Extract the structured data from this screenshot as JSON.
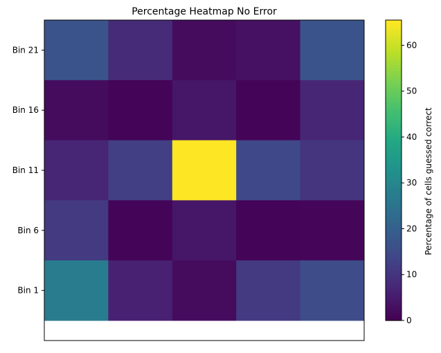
{
  "chart_data": {
    "type": "heatmap",
    "title": "Percentage Heatmap No Error",
    "xlabel": "",
    "ylabel": "",
    "x_tick_labels": [],
    "y_tick_labels": [
      "Bin 21",
      "Bin 16",
      "Bin 11",
      "Bin 6",
      "Bin 1"
    ],
    "rows": [
      "Bin 21",
      "Bin 16",
      "Bin 11",
      "Bin 6",
      "Bin 1"
    ],
    "values": [
      [
        17,
        8,
        2,
        3,
        17
      ],
      [
        2,
        0.5,
        4,
        0.5,
        7
      ],
      [
        7,
        12,
        66,
        14,
        10
      ],
      [
        11,
        0.5,
        4,
        0.5,
        1
      ],
      [
        27,
        6,
        2,
        11,
        15
      ]
    ],
    "colormap": "viridis",
    "colorbar": {
      "label": "Percentage of cells guessed correct",
      "range": [
        0,
        65.5
      ],
      "ticks": [
        0,
        10,
        20,
        30,
        40,
        50,
        60
      ],
      "tick_labels": [
        "0",
        "10",
        "20",
        "30",
        "40",
        "50",
        "60"
      ]
    },
    "grid": false
  }
}
